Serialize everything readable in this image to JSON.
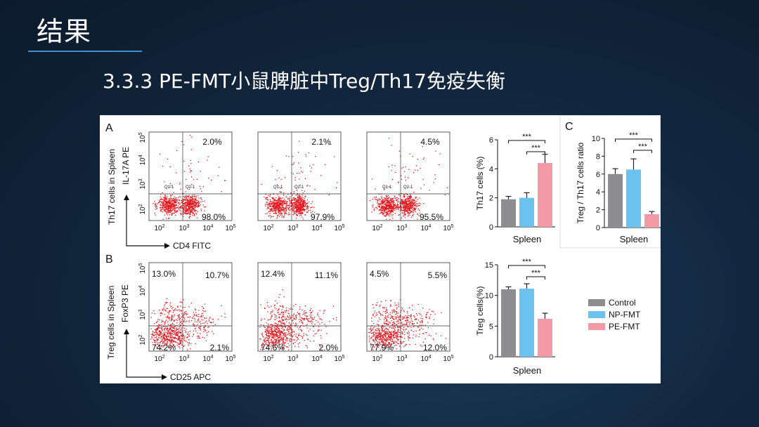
{
  "slide": {
    "title": "结果",
    "subtitle": "3.3.3 PE-FMT小鼠脾脏中Treg/Th17免疫失衡"
  },
  "colors": {
    "accent_line": "#4a8cc8",
    "control": "#8d8d8f",
    "np_fmt": "#6cc2ee",
    "pe_fmt": "#f29aa6",
    "dots": "#e8141c"
  },
  "figure": {
    "panel_a": {
      "label": "A",
      "row_label": "Th17 cells in Spleen",
      "y_axis": "IL-17A PE",
      "x_axis": "CD4 FITC",
      "plots": [
        {
          "upper_right": "2.0%",
          "lower_right": "98.0%",
          "gates": [
            "Q1-1",
            "Q2-1"
          ]
        },
        {
          "upper_right": "2.1%",
          "lower_right": "97.9%",
          "gates": [
            "Q1-1",
            "Q2-1"
          ]
        },
        {
          "upper_right": "4.5%",
          "lower_right": "95.5%",
          "gates": [
            "Q1-1",
            "Q2-1"
          ]
        }
      ]
    },
    "panel_b": {
      "label": "B",
      "row_label": "Treg cells in Spleen",
      "y_axis": "FoxP3 PE",
      "x_axis": "CD25 APC",
      "plots": [
        {
          "upper_left": "13.0%",
          "upper_right": "10.7%",
          "lower_left": "74.2%",
          "lower_right": "2.1%"
        },
        {
          "upper_left": "12.4%",
          "upper_right": "11.1%",
          "lower_left": "74.6%",
          "lower_right": "2.0%"
        },
        {
          "upper_left": "4.5%",
          "upper_right": "5.5%",
          "lower_left": "77.9%",
          "lower_right": "12.0%"
        }
      ]
    },
    "panel_c": {
      "label": "C"
    },
    "ticks": {
      "x": [
        "10",
        "10",
        "10",
        "10"
      ],
      "x_exp": [
        "2",
        "3",
        "4",
        "5"
      ],
      "y": [
        "10",
        "10",
        "10",
        "10"
      ],
      "y_exp": [
        "2",
        "3",
        "4",
        "5"
      ]
    },
    "significance": "***",
    "legend": [
      "Control",
      "NP-FMT",
      "PE-FMT"
    ]
  },
  "chart_data": [
    {
      "type": "bar",
      "panel": "A",
      "ylabel": "Th17 cells (%)",
      "xlabel": "Spleen",
      "categories": [
        "Control",
        "NP-FMT",
        "PE-FMT"
      ],
      "values": [
        1.9,
        2.0,
        4.4
      ],
      "errors": [
        0.2,
        0.35,
        0.6
      ],
      "ylim": [
        0,
        6
      ],
      "yticks": [
        "0",
        "2",
        "4",
        "6"
      ]
    },
    {
      "type": "bar",
      "panel": "C",
      "ylabel": "Treg / Th17 cells ratio",
      "xlabel": "Spleen",
      "categories": [
        "Control",
        "NP-FMT",
        "PE-FMT"
      ],
      "values": [
        6.0,
        6.5,
        1.5
      ],
      "errors": [
        0.6,
        1.2,
        0.3
      ],
      "ylim": [
        0,
        10
      ],
      "yticks": [
        "0",
        "2",
        "4",
        "6",
        "8",
        "10"
      ]
    },
    {
      "type": "bar",
      "panel": "B",
      "ylabel": "Treg cells(%)",
      "xlabel": "Spleen",
      "categories": [
        "Control",
        "NP-FMT",
        "PE-FMT"
      ],
      "values": [
        11.0,
        11.1,
        6.2
      ],
      "errors": [
        0.4,
        0.8,
        0.9
      ],
      "ylim": [
        0,
        15
      ],
      "yticks": [
        "0",
        "5",
        "10",
        "15"
      ]
    }
  ]
}
